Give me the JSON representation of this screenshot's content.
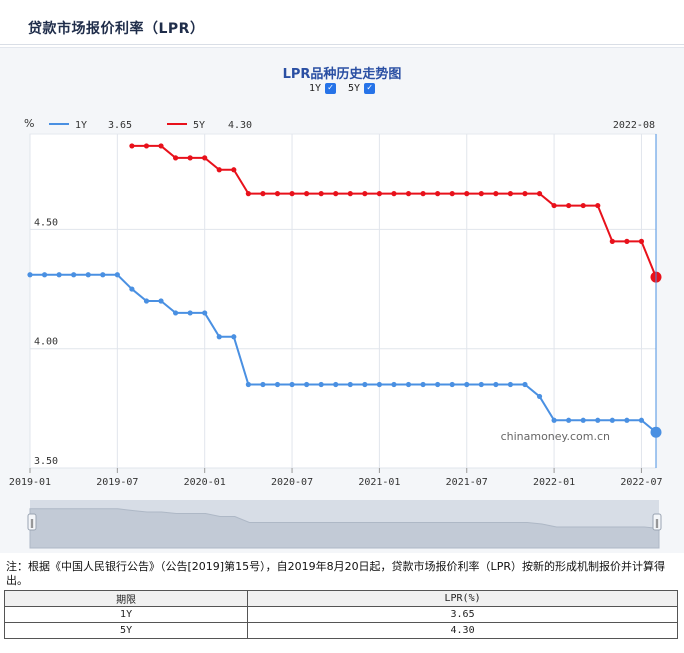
{
  "header": {
    "title": "贷款市场报价利率（LPR）"
  },
  "chart_data": {
    "type": "line",
    "title": "LPR品种历史走势图",
    "unit": "%",
    "toggles": [
      {
        "label": "1Y",
        "checked": true
      },
      {
        "label": "5Y",
        "checked": true
      }
    ],
    "legend": {
      "position": "top-left",
      "current_period": "2022-08"
    },
    "ylim": [
      3.5,
      4.9
    ],
    "yticks": [
      "4.50",
      "4.00",
      "3.50"
    ],
    "xticks": [
      "2019-01",
      "2019-07",
      "2020-01",
      "2020-07",
      "2021-01",
      "2021-07",
      "2022-01",
      "2022-07"
    ],
    "xlim": [
      "2019-01",
      "2022-08"
    ],
    "watermark": "chinamoney.com.cn",
    "series": [
      {
        "name": "1Y",
        "latest": "3.65",
        "color": "#4a90e2",
        "x": [
          "2019-01",
          "2019-02",
          "2019-03",
          "2019-04",
          "2019-05",
          "2019-06",
          "2019-07",
          "2019-08",
          "2019-09",
          "2019-10",
          "2019-11",
          "2019-12",
          "2020-01",
          "2020-02",
          "2020-03",
          "2020-04",
          "2020-05",
          "2020-06",
          "2020-07",
          "2020-08",
          "2020-09",
          "2020-10",
          "2020-11",
          "2020-12",
          "2021-01",
          "2021-02",
          "2021-03",
          "2021-04",
          "2021-05",
          "2021-06",
          "2021-07",
          "2021-08",
          "2021-09",
          "2021-10",
          "2021-11",
          "2021-12",
          "2022-01",
          "2022-02",
          "2022-03",
          "2022-04",
          "2022-05",
          "2022-06",
          "2022-07",
          "2022-08"
        ],
        "values": [
          4.31,
          4.31,
          4.31,
          4.31,
          4.31,
          4.31,
          4.31,
          4.25,
          4.2,
          4.2,
          4.15,
          4.15,
          4.15,
          4.05,
          4.05,
          3.85,
          3.85,
          3.85,
          3.85,
          3.85,
          3.85,
          3.85,
          3.85,
          3.85,
          3.85,
          3.85,
          3.85,
          3.85,
          3.85,
          3.85,
          3.85,
          3.85,
          3.85,
          3.85,
          3.85,
          3.8,
          3.7,
          3.7,
          3.7,
          3.7,
          3.7,
          3.7,
          3.7,
          3.65
        ]
      },
      {
        "name": "5Y",
        "latest": "4.30",
        "color": "#e8111b",
        "x": [
          "2019-08",
          "2019-09",
          "2019-10",
          "2019-11",
          "2019-12",
          "2020-01",
          "2020-02",
          "2020-03",
          "2020-04",
          "2020-05",
          "2020-06",
          "2020-07",
          "2020-08",
          "2020-09",
          "2020-10",
          "2020-11",
          "2020-12",
          "2021-01",
          "2021-02",
          "2021-03",
          "2021-04",
          "2021-05",
          "2021-06",
          "2021-07",
          "2021-08",
          "2021-09",
          "2021-10",
          "2021-11",
          "2021-12",
          "2022-01",
          "2022-02",
          "2022-03",
          "2022-04",
          "2022-05",
          "2022-06",
          "2022-07",
          "2022-08"
        ],
        "values": [
          4.85,
          4.85,
          4.85,
          4.8,
          4.8,
          4.8,
          4.75,
          4.75,
          4.65,
          4.65,
          4.65,
          4.65,
          4.65,
          4.65,
          4.65,
          4.65,
          4.65,
          4.65,
          4.65,
          4.65,
          4.65,
          4.65,
          4.65,
          4.65,
          4.65,
          4.65,
          4.65,
          4.65,
          4.65,
          4.6,
          4.6,
          4.6,
          4.6,
          4.45,
          4.45,
          4.45,
          4.3
        ]
      }
    ]
  },
  "note": "注：根据《中国人民银行公告》（公告[2019]第15号），自2019年8月20日起，贷款市场报价利率（LPR）按新的形成机制报价并计算得出。",
  "table": {
    "headers": [
      "期限",
      "LPR(%)"
    ],
    "rows": [
      [
        "1Y",
        "3.65"
      ],
      [
        "5Y",
        "4.30"
      ]
    ]
  }
}
